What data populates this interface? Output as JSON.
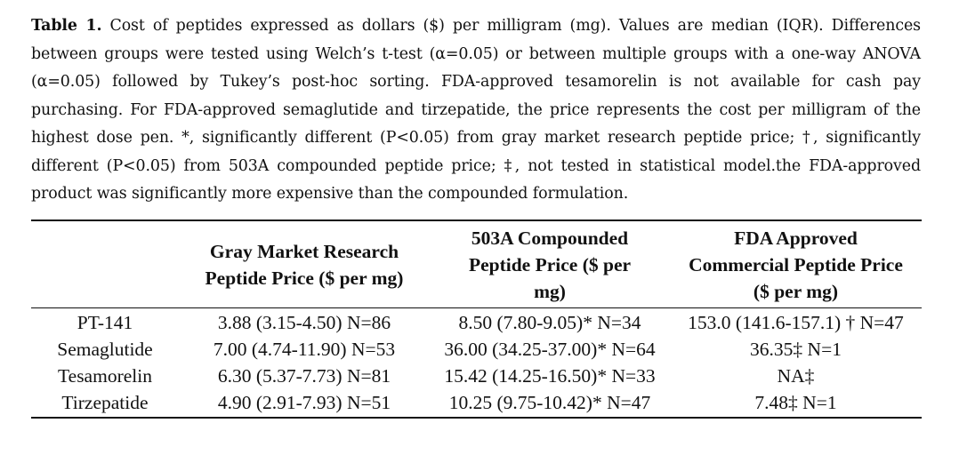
{
  "caption": {
    "label": "Table 1.",
    "text": " Cost of peptides expressed as dollars ($) per milligram (mg). Values are median (IQR). Differences between groups were tested using Welch’s t-test (α=0.05) or between multiple groups with a one-way ANOVA (α=0.05) followed by Tukey’s post-hoc sorting. FDA-approved tesamorelin is not available for cash pay purchasing. For FDA-approved semaglutide and tirzepatide, the price represents the cost per milligram of the highest dose pen. *, significantly different (P<0.05) from gray market research peptide price; †, significantly different (P<0.05) from 503A compounded peptide price; ‡, not tested in statistical model.the FDA-approved product was significantly more expensive than the compounded formulation."
  },
  "table": {
    "headers": [
      "",
      "Gray Market Research Peptide Price ($ per mg)",
      "503A Compounded Peptide Price ($ per mg)",
      "FDA Approved Commercial Peptide Price ($ per mg)"
    ],
    "rows": [
      [
        "PT-141",
        "3.88 (3.15-4.50) N=86",
        "8.50 (7.80-9.05)* N=34",
        "153.0 (141.6-157.1) † N=47"
      ],
      [
        "Semaglutide",
        "7.00 (4.74-11.90) N=53",
        "36.00 (34.25-37.00)* N=64",
        "36.35‡ N=1"
      ],
      [
        "Tesamorelin",
        "6.30 (5.37-7.73) N=81",
        "15.42 (14.25-16.50)* N=33",
        "NA‡"
      ],
      [
        "Tirzepatide",
        "4.90 (2.91-7.93) N=51",
        "10.25 (9.75-10.42)* N=47",
        "7.48‡ N=1"
      ]
    ]
  }
}
